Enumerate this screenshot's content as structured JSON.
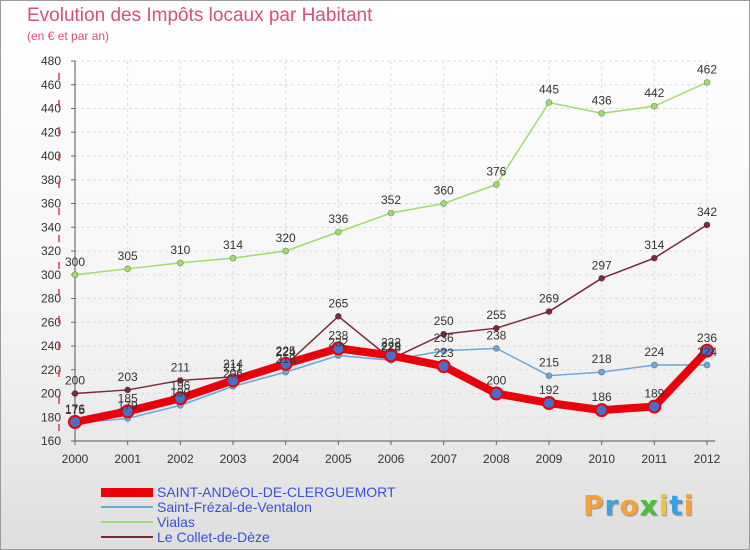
{
  "title": "Evolution des Impôts locaux par Habitant",
  "subtitle": "(en € et par an)",
  "brand": {
    "letters": [
      "P",
      "r",
      "o",
      "x",
      "i",
      "t",
      "i"
    ],
    "colors": [
      "#f2a33a",
      "#3aa0e0",
      "#f2a33a",
      "#4cbf3a",
      "#f2c23a",
      "#3aa0e0",
      "#f2a33a"
    ]
  },
  "chart_data": {
    "type": "line",
    "x": [
      "2000",
      "2001",
      "2002",
      "2003",
      "2004",
      "2005",
      "2006",
      "2007",
      "2008",
      "2009",
      "2010",
      "2011",
      "2012"
    ],
    "ylim": [
      160,
      480
    ],
    "yticks": [
      160,
      180,
      200,
      220,
      240,
      260,
      280,
      300,
      320,
      340,
      360,
      380,
      400,
      420,
      440,
      460,
      480
    ],
    "grid": true,
    "legend_position": "bottom-left",
    "series": [
      {
        "name": "SAINT-ANDéOL-DE-CLERGUEMORT",
        "color": "#e8000b",
        "width": 8,
        "values": [
          176,
          185,
          196,
          211,
          225,
          238,
          232,
          223,
          200,
          192,
          186,
          189,
          236
        ]
      },
      {
        "name": "Saint-Frézal-de-Ventalon",
        "color": "#6ea6d8",
        "width": 1.5,
        "values": [
          175,
          179,
          190,
          206,
          218,
          232,
          228,
          236,
          238,
          215,
          218,
          224,
          224
        ]
      },
      {
        "name": "Vialas",
        "color": "#9edc6c",
        "width": 1.5,
        "values": [
          300,
          305,
          310,
          314,
          320,
          336,
          352,
          360,
          376,
          445,
          436,
          442,
          462
        ]
      },
      {
        "name": "Le Collet-de-Dèze",
        "color": "#7a2a36",
        "width": 1.5,
        "values": [
          200,
          203,
          211,
          214,
          224,
          265,
          229,
          250,
          255,
          269,
          297,
          314,
          342
        ]
      }
    ]
  }
}
